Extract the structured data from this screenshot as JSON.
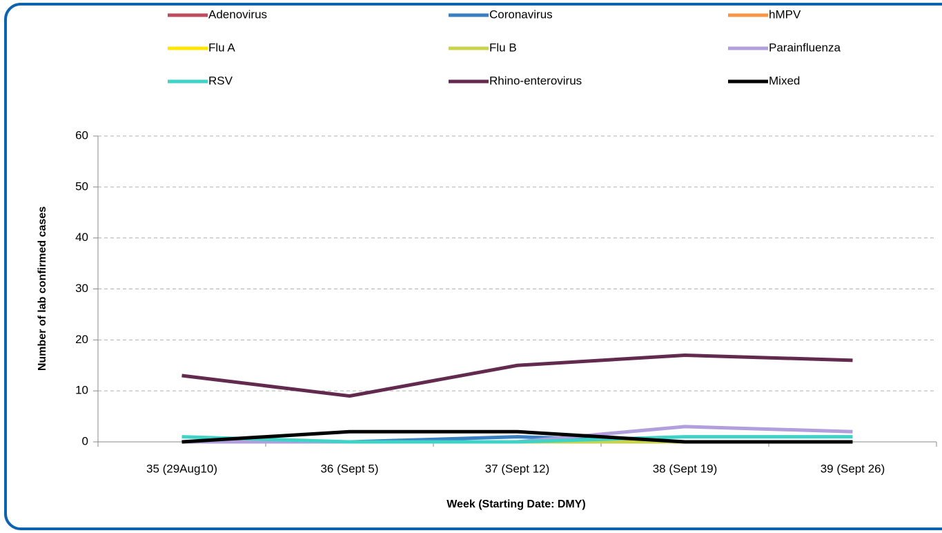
{
  "chart_data": {
    "type": "line",
    "xlabel": "Week (Starting Date: DMY)",
    "ylabel": "Number of lab confirmed cases",
    "categories": [
      "35 (29Aug10)",
      "36 (Sept 5)",
      "37 (Sept 12)",
      "38 (Sept 19)",
      "39 (Sept 26)"
    ],
    "series": [
      {
        "name": "Adenovirus",
        "color": "#be4b5e",
        "values": [
          0,
          0,
          0,
          0,
          0
        ]
      },
      {
        "name": "Coronavirus",
        "color": "#3a7fc1",
        "values": [
          0,
          0,
          1,
          0,
          0
        ]
      },
      {
        "name": "hMPV",
        "color": "#f79646",
        "values": [
          0,
          0,
          0,
          0,
          0
        ]
      },
      {
        "name": "Flu A",
        "color": "#ffe600",
        "values": [
          0,
          0,
          0,
          0,
          0
        ]
      },
      {
        "name": "Flu B",
        "color": "#c9d34b",
        "values": [
          0,
          0,
          0,
          0,
          0
        ]
      },
      {
        "name": "Parainfluenza",
        "color": "#b09fdc",
        "values": [
          0,
          0,
          0,
          3,
          2
        ]
      },
      {
        "name": "RSV",
        "color": "#3fd3c8",
        "values": [
          1,
          0,
          0,
          1,
          1
        ]
      },
      {
        "name": "Rhino-enterovirus",
        "color": "#632a4f",
        "values": [
          13,
          9,
          15,
          17,
          16
        ]
      },
      {
        "name": "Mixed",
        "color": "#000000",
        "values": [
          0,
          2,
          2,
          0,
          0
        ]
      }
    ],
    "ylim": [
      0,
      60
    ],
    "yticks": [
      0,
      10,
      20,
      30,
      40,
      50,
      60
    ],
    "grid": true,
    "legend": "top"
  }
}
